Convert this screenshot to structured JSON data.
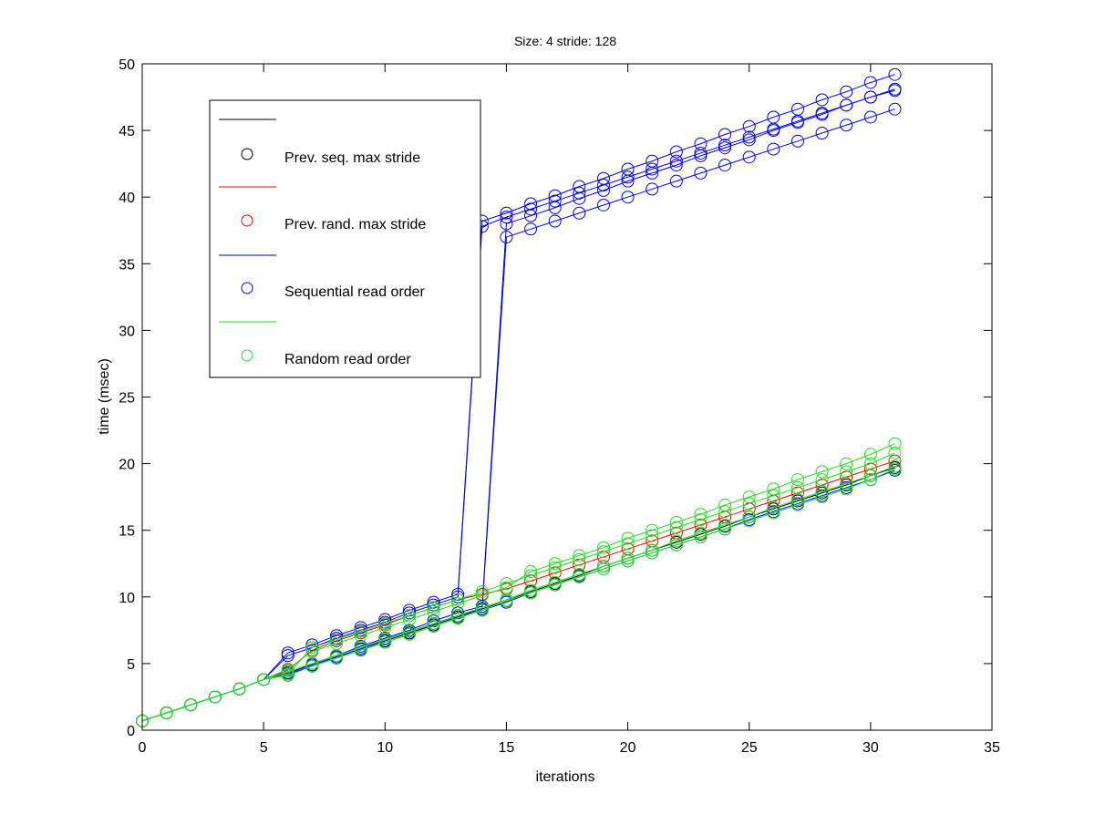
{
  "chart_data": {
    "type": "line",
    "title": "Size: 4 stride: 128",
    "xlabel": "iterations",
    "ylabel": "time (msec)",
    "xlim": [
      0,
      35
    ],
    "ylim": [
      0,
      50
    ],
    "xticks": [
      0,
      5,
      10,
      15,
      20,
      25,
      30,
      35
    ],
    "yticks": [
      0,
      5,
      10,
      15,
      20,
      25,
      30,
      35,
      40,
      45,
      50
    ],
    "grid": false,
    "marker": "circle",
    "legend_placement": "upper-left",
    "legend": [
      {
        "label": "",
        "color": "#000000",
        "kind": "line"
      },
      {
        "label": "Prev. seq. max stride",
        "color": "#000000",
        "kind": "marker"
      },
      {
        "label": "",
        "color": "#ff0000",
        "kind": "line"
      },
      {
        "label": "Prev. rand. max stride",
        "color": "#ff0000",
        "kind": "marker"
      },
      {
        "label": "",
        "color": "#0000ff",
        "kind": "line"
      },
      {
        "label": "Sequential read order",
        "color": "#0000ff",
        "kind": "marker"
      },
      {
        "label": "",
        "color": "#22dd22",
        "kind": "line"
      },
      {
        "label": "Random read order",
        "color": "#22dd22",
        "kind": "marker"
      }
    ],
    "x": [
      0,
      1,
      2,
      3,
      4,
      5,
      6,
      7,
      8,
      9,
      10,
      11,
      12,
      13,
      14,
      15,
      16,
      17,
      18,
      19,
      20,
      21,
      22,
      23,
      24,
      25,
      26,
      27,
      28,
      29,
      30,
      31
    ],
    "series": [
      {
        "name": "Prev. seq. max stride",
        "color": "#000000",
        "values": [
          0.7,
          1.3,
          1.9,
          2.5,
          3.1,
          3.8,
          4.3,
          4.9,
          5.5,
          6.1,
          6.7,
          7.3,
          7.9,
          8.5,
          9.1,
          9.7,
          10.4,
          11.0,
          11.6,
          12.3,
          12.9,
          13.5,
          14.1,
          14.7,
          15.3,
          16.0,
          16.6,
          17.2,
          17.8,
          18.4,
          19.1,
          19.7
        ]
      },
      {
        "name": "Prev. rand. max stride",
        "color": "#ff0000",
        "values": [
          0.7,
          1.3,
          1.9,
          2.5,
          3.1,
          3.8,
          4.5,
          6.0,
          6.7,
          7.3,
          7.9,
          8.6,
          9.2,
          9.8,
          10.2,
          10.6,
          11.2,
          11.8,
          12.4,
          13.0,
          13.6,
          14.2,
          14.8,
          15.4,
          16.0,
          16.6,
          17.2,
          17.8,
          18.4,
          19.0,
          19.6,
          20.2
        ]
      },
      {
        "name": "Sequential read order 1",
        "color": "#0000ff",
        "values": [
          0.7,
          1.3,
          1.9,
          2.5,
          3.1,
          3.8,
          5.6,
          6.2,
          6.9,
          7.5,
          8.1,
          8.8,
          9.4,
          10.0,
          37.8,
          38.5,
          39.1,
          39.7,
          40.3,
          40.9,
          41.5,
          42.1,
          42.7,
          43.3,
          43.9,
          44.5,
          45.1,
          45.7,
          46.3,
          46.9,
          47.5,
          48.1
        ]
      },
      {
        "name": "Sequential read order 2",
        "color": "#0000ff",
        "values": [
          0.7,
          1.3,
          1.9,
          2.5,
          3.1,
          3.8,
          5.8,
          6.4,
          7.1,
          7.7,
          8.3,
          9.0,
          9.6,
          10.2,
          38.2,
          38.8,
          39.5,
          40.1,
          40.8,
          41.4,
          42.1,
          42.7,
          43.4,
          44.0,
          44.7,
          45.3,
          46.0,
          46.6,
          47.3,
          47.9,
          48.6,
          49.2
        ]
      },
      {
        "name": "Sequential read order 3",
        "color": "#0000ff",
        "values": [
          0.7,
          1.3,
          1.9,
          2.5,
          3.1,
          3.8,
          4.3,
          4.9,
          5.5,
          6.1,
          6.8,
          7.4,
          8.0,
          8.6,
          9.1,
          37.0,
          37.6,
          38.2,
          38.8,
          39.4,
          40.0,
          40.6,
          41.2,
          41.8,
          42.4,
          43.0,
          43.6,
          44.2,
          44.8,
          45.4,
          46.0,
          46.6
        ]
      },
      {
        "name": "Sequential read order 4",
        "color": "#0000ff",
        "values": [
          0.7,
          1.3,
          1.9,
          2.5,
          3.1,
          3.8,
          4.2,
          5.0,
          5.6,
          6.3,
          6.9,
          7.5,
          8.2,
          8.8,
          9.3,
          38.0,
          38.6,
          39.2,
          39.9,
          40.5,
          41.2,
          41.8,
          42.4,
          43.1,
          43.7,
          44.3,
          45.0,
          45.6,
          46.2,
          46.9,
          47.5,
          48.0
        ]
      },
      {
        "name": "Sequential read order 5",
        "color": "#0000ff",
        "values": [
          0.7,
          1.3,
          1.9,
          2.5,
          3.1,
          3.8,
          4.2,
          4.8,
          5.4,
          6.0,
          6.6,
          7.2,
          7.8,
          8.4,
          9.0,
          9.6,
          10.3,
          10.9,
          11.5,
          12.1,
          12.7,
          13.3,
          13.9,
          14.5,
          15.1,
          15.8,
          16.4,
          17.0,
          17.6,
          18.2,
          18.8,
          19.5
        ]
      },
      {
        "name": "Random read order 1",
        "color": "#22dd22",
        "values": [
          0.7,
          1.3,
          1.9,
          2.5,
          3.1,
          3.8,
          4.2,
          6.2,
          6.8,
          7.4,
          8.0,
          8.6,
          9.2,
          9.8,
          10.4,
          11.0,
          11.6,
          12.2,
          12.8,
          13.4,
          14.0,
          14.6,
          15.2,
          15.8,
          16.4,
          17.0,
          17.6,
          18.2,
          18.8,
          19.4,
          20.0,
          20.8
        ]
      },
      {
        "name": "Random read order 2",
        "color": "#22dd22",
        "values": [
          0.7,
          1.3,
          1.9,
          2.5,
          3.1,
          3.8,
          4.4,
          5.0,
          5.6,
          6.2,
          6.8,
          7.4,
          8.0,
          8.6,
          9.2,
          9.8,
          10.5,
          11.1,
          11.7,
          12.3,
          12.9,
          13.5,
          14.2,
          14.8,
          15.4,
          16.0,
          16.7,
          17.3,
          17.9,
          18.5,
          19.1,
          19.8
        ]
      },
      {
        "name": "Random read order 3",
        "color": "#22dd22",
        "values": [
          0.7,
          1.3,
          1.9,
          2.5,
          3.1,
          3.8,
          4.6,
          5.9,
          6.5,
          7.1,
          7.7,
          8.3,
          8.9,
          9.5,
          10.1,
          10.7,
          11.9,
          12.5,
          13.1,
          13.7,
          14.4,
          15.0,
          15.6,
          16.2,
          16.9,
          17.5,
          18.1,
          18.8,
          19.4,
          20.0,
          20.7,
          21.5
        ]
      },
      {
        "name": "Random read order 4",
        "color": "#22dd22",
        "values": [
          0.7,
          1.3,
          1.9,
          2.5,
          3.1,
          3.8,
          4.1,
          4.8,
          5.4,
          6.0,
          6.6,
          7.2,
          7.8,
          8.4,
          9.0,
          9.7,
          10.3,
          10.9,
          11.5,
          12.1,
          12.7,
          13.3,
          13.9,
          14.5,
          15.1,
          15.7,
          16.3,
          16.9,
          17.5,
          18.1,
          18.8,
          19.6
        ]
      }
    ]
  }
}
